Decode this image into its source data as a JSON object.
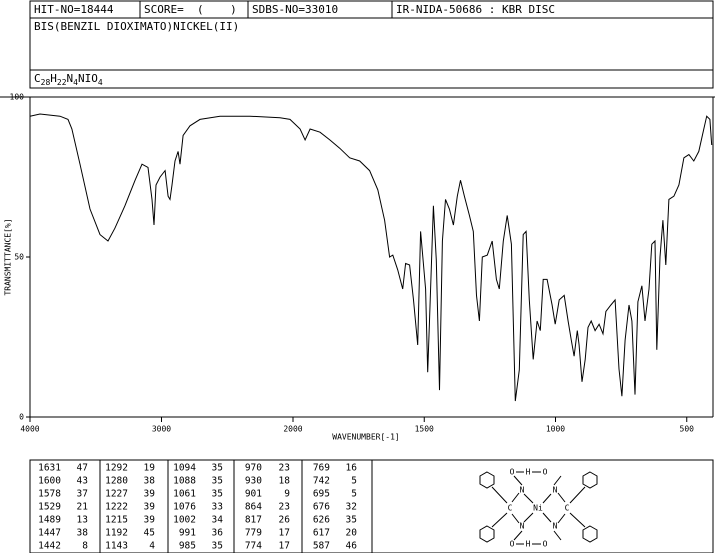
{
  "header": {
    "hit_no": "HIT-NO=18444",
    "score": "SCORE=  (    )",
    "sdbs_no": "SDBS-NO=33010",
    "ir_code": "IR-NIDA-50686 : KBR DISC",
    "compound": "BIS(BENZIL DIOXIMATO)NICKEL(II)",
    "formula_parts": [
      "C",
      "28",
      "H",
      "22",
      "N",
      "4",
      "NIO",
      "4"
    ]
  },
  "chart_data": {
    "type": "line",
    "xlabel": "WAVENUMBER[-1]",
    "ylabel": "TRANSMITTANCE[%]",
    "color": "#000000",
    "xlim": [
      4000,
      400
    ],
    "x_scale_break": 2000,
    "xticks": [
      4000,
      3000,
      2000,
      1500,
      1000,
      500
    ],
    "ylim": [
      0,
      100
    ],
    "yticks": [
      0,
      50,
      100
    ],
    "x": [
      4000,
      3924,
      3772,
      3711,
      3681,
      3620,
      3544,
      3468,
      3407,
      3354,
      3278,
      3201,
      3148,
      3103,
      3072,
      3057,
      3042,
      3011,
      2973,
      2950,
      2935,
      2920,
      2897,
      2874,
      2859,
      2836,
      2783,
      2707,
      2555,
      2327,
      2099,
      2023,
      1973,
      1954,
      1935,
      1897,
      1860,
      1822,
      1784,
      1746,
      1708,
      1677,
      1651,
      1632,
      1620,
      1601,
      1582,
      1571,
      1556,
      1541,
      1525,
      1514,
      1495,
      1487,
      1480,
      1465,
      1454,
      1442,
      1431,
      1419,
      1404,
      1389,
      1374,
      1362,
      1347,
      1328,
      1313,
      1301,
      1290,
      1279,
      1260,
      1241,
      1225,
      1214,
      1199,
      1184,
      1168,
      1153,
      1138,
      1123,
      1112,
      1100,
      1085,
      1070,
      1058,
      1047,
      1032,
      1013,
      1001,
      986,
      967,
      952,
      940,
      929,
      917,
      910,
      899,
      887,
      876,
      864,
      849,
      834,
      819,
      808,
      789,
      773,
      758,
      747,
      735,
      720,
      709,
      697,
      686,
      671,
      659,
      644,
      633,
      621,
      614,
      602,
      591,
      580,
      568,
      549,
      530,
      511,
      492,
      473,
      454,
      435,
      424,
      412,
      405
    ],
    "values": [
      94,
      94.7,
      94,
      93,
      90,
      79,
      65,
      57,
      55,
      59,
      66,
      74,
      79,
      78,
      68,
      60,
      72.5,
      75,
      77,
      69,
      68,
      72.5,
      80,
      83,
      79,
      88,
      91,
      93,
      94,
      94,
      93.5,
      93,
      90,
      86.6,
      90,
      89,
      86.6,
      84,
      81,
      80,
      77,
      71,
      61.5,
      50,
      50.6,
      46,
      40,
      48,
      47.5,
      36.6,
      22.5,
      58,
      40,
      14,
      30,
      66,
      49,
      8.4,
      55,
      68,
      65,
      60,
      69,
      74,
      69,
      63,
      58,
      38,
      30,
      50,
      50.6,
      55,
      43,
      40,
      55,
      63,
      54,
      5,
      14.7,
      57,
      58,
      36.6,
      18,
      30,
      27,
      43,
      43,
      35,
      29,
      36.6,
      38,
      30,
      24,
      19,
      27,
      22.5,
      11,
      18,
      28,
      30,
      27,
      29,
      26,
      33,
      35,
      36.6,
      15,
      6.5,
      24,
      35,
      30,
      7,
      36,
      41,
      30,
      40,
      54,
      55,
      21,
      50,
      61.5,
      47.5,
      68,
      69,
      72.5,
      81,
      82,
      80,
      83,
      90,
      94,
      93,
      85
    ]
  },
  "peak_table": {
    "rows": [
      [
        "1631",
        "47",
        "1292",
        "19",
        "1094",
        "35",
        "970",
        "23",
        "769",
        "16"
      ],
      [
        "1600",
        "43",
        "1280",
        "38",
        "1088",
        "35",
        "930",
        "18",
        "742",
        "5"
      ],
      [
        "1578",
        "37",
        "1227",
        "39",
        "1061",
        "35",
        "901",
        "9",
        "695",
        "5"
      ],
      [
        "1529",
        "21",
        "1222",
        "39",
        "1076",
        "33",
        "864",
        "23",
        "676",
        "32"
      ],
      [
        "1489",
        "13",
        "1215",
        "39",
        "1002",
        "34",
        "817",
        "26",
        "626",
        "35"
      ],
      [
        "1447",
        "38",
        "1192",
        "45",
        "991",
        "36",
        "779",
        "17",
        "617",
        "20"
      ],
      [
        "1442",
        "8",
        "1143",
        "4",
        "985",
        "35",
        "774",
        "17",
        "587",
        "46"
      ]
    ]
  },
  "structure": {
    "labels": [
      "O",
      "H",
      "O",
      "N",
      "N",
      "C",
      "Ni",
      "C",
      "N",
      "N",
      "O",
      "H",
      "O"
    ]
  }
}
